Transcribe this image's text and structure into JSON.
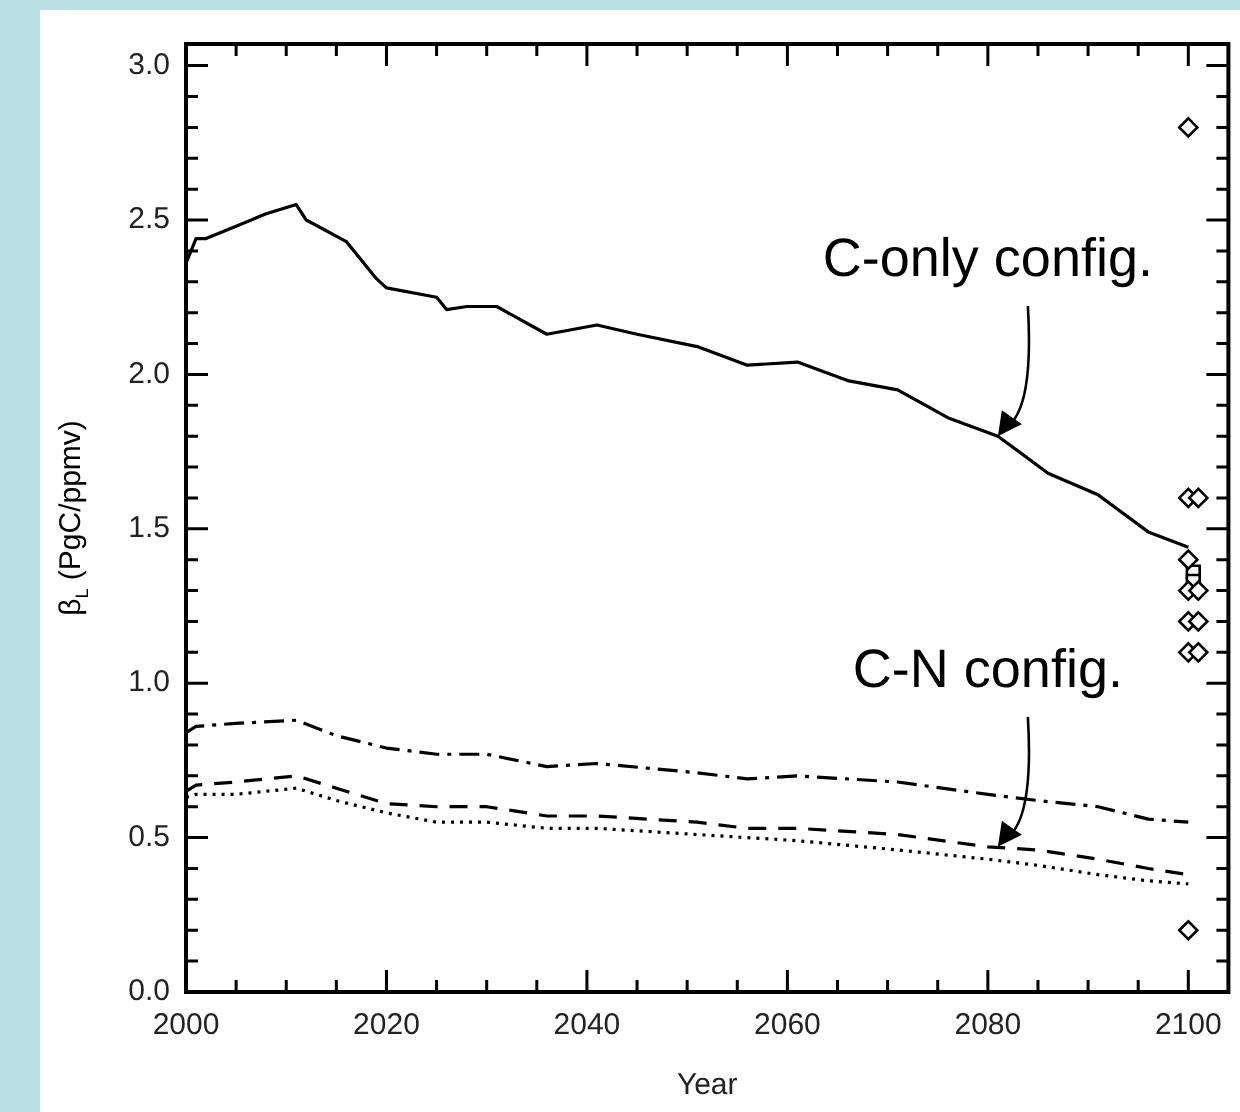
{
  "chart_data": {
    "type": "line",
    "xlabel": "Year",
    "ylabel": "β$_{L}$ (PgC/ppmv)",
    "xlim": [
      2000,
      2104
    ],
    "ylim": [
      0,
      3.07
    ],
    "xticks": [
      2000,
      {
        "value": 2005,
        "label": null
      },
      {
        "value": 2010,
        "label": null
      },
      {
        "value": 2015,
        "label": null
      },
      2020,
      {
        "value": 2025,
        "label": null
      },
      {
        "value": 2030,
        "label": null
      },
      {
        "value": 2035,
        "label": null
      },
      2040,
      {
        "value": 2045,
        "label": null
      },
      {
        "value": 2050,
        "label": null
      },
      {
        "value": 2055,
        "label": null
      },
      2060,
      {
        "value": 2065,
        "label": null
      },
      {
        "value": 2070,
        "label": null
      },
      {
        "value": 2075,
        "label": null
      },
      2080,
      {
        "value": 2085,
        "label": null
      },
      {
        "value": 2090,
        "label": null
      },
      {
        "value": 2095,
        "label": null
      },
      2100
    ],
    "yticks": [
      {
        "value": 0,
        "label": "0.0"
      },
      {
        "value": 0.1,
        "label": null
      },
      {
        "value": 0.2,
        "label": null
      },
      {
        "value": 0.3,
        "label": null
      },
      {
        "value": 0.4,
        "label": null
      },
      {
        "value": 0.5,
        "label": "0.5"
      },
      {
        "value": 0.6,
        "label": null
      },
      {
        "value": 0.7,
        "label": null
      },
      {
        "value": 0.8,
        "label": null
      },
      {
        "value": 0.9,
        "label": null
      },
      {
        "value": 1,
        "label": "1.0"
      },
      {
        "value": 1.1,
        "label": null
      },
      {
        "value": 1.2,
        "label": null
      },
      {
        "value": 1.3,
        "label": null
      },
      {
        "value": 1.4,
        "label": null
      },
      {
        "value": 1.5,
        "label": "1.5"
      },
      {
        "value": 1.6,
        "label": null
      },
      {
        "value": 1.7,
        "label": null
      },
      {
        "value": 1.8,
        "label": null
      },
      {
        "value": 1.9,
        "label": null
      },
      {
        "value": 2,
        "label": "2.0"
      },
      {
        "value": 2.1,
        "label": null
      },
      {
        "value": 2.2,
        "label": null
      },
      {
        "value": 2.3,
        "label": null
      },
      {
        "value": 2.4,
        "label": null
      },
      {
        "value": 2.5,
        "label": "2.5"
      },
      {
        "value": 2.6,
        "label": null
      },
      {
        "value": 2.7,
        "label": null
      },
      {
        "value": 2.8,
        "label": null
      },
      {
        "value": 2.9,
        "label": null
      },
      {
        "value": 3,
        "label": "3.0"
      }
    ],
    "grid": false,
    "legend": false,
    "marker": "none",
    "series": [
      {
        "color": "#000000",
        "line_style": "solid",
        "x": [
          2000,
          2001,
          2002,
          2005,
          2008,
          2011,
          2012,
          2016,
          2019,
          2020,
          2025,
          2026,
          2028,
          2031,
          2036,
          2041,
          2045,
          2051,
          2056,
          2061,
          2066,
          2071,
          2076,
          2081,
          2086,
          2091,
          2096,
          2100
        ],
        "values": [
          2.36,
          2.44,
          2.44,
          2.48,
          2.52,
          2.55,
          2.5,
          2.43,
          2.31,
          2.28,
          2.25,
          2.21,
          2.22,
          2.22,
          2.13,
          2.16,
          2.13,
          2.09,
          2.03,
          2.04,
          1.98,
          1.95,
          1.86,
          1.8,
          1.68,
          1.61,
          1.49,
          1.44
        ]
      },
      {
        "color": "#000000",
        "line_style": "dashdot",
        "x": [
          2000,
          2001,
          2005,
          2011,
          2015,
          2020,
          2025,
          2030,
          2036,
          2041,
          2051,
          2056,
          2061,
          2071,
          2080,
          2085,
          2091,
          2096,
          2100
        ],
        "values": [
          0.84,
          0.86,
          0.87,
          0.88,
          0.83,
          0.79,
          0.77,
          0.77,
          0.73,
          0.74,
          0.71,
          0.69,
          0.7,
          0.68,
          0.64,
          0.62,
          0.6,
          0.56,
          0.55
        ]
      },
      {
        "color": "#000000",
        "line_style": "dashed",
        "x": [
          2000,
          2001,
          2005,
          2011,
          2015,
          2020,
          2025,
          2030,
          2036,
          2041,
          2051,
          2056,
          2061,
          2071,
          2080,
          2085,
          2091,
          2096,
          2100
        ],
        "values": [
          0.65,
          0.67,
          0.68,
          0.7,
          0.66,
          0.61,
          0.6,
          0.6,
          0.57,
          0.57,
          0.55,
          0.53,
          0.53,
          0.51,
          0.47,
          0.46,
          0.43,
          0.4,
          0.38
        ]
      },
      {
        "color": "#000000",
        "line_style": "dotted",
        "x": [
          2000,
          2001,
          2005,
          2011,
          2015,
          2020,
          2025,
          2030,
          2036,
          2041,
          2051,
          2056,
          2061,
          2071,
          2080,
          2085,
          2091,
          2096,
          2100
        ],
        "values": [
          0.63,
          0.64,
          0.64,
          0.66,
          0.62,
          0.58,
          0.55,
          0.55,
          0.53,
          0.53,
          0.51,
          0.5,
          0.49,
          0.46,
          0.43,
          0.41,
          0.38,
          0.36,
          0.35
        ]
      },
      {
        "type": "scatter",
        "marker": "diamond",
        "color": "#000000",
        "x": [
          2100,
          2100,
          2101,
          2100,
          2100,
          2101,
          2100,
          2101,
          2100,
          2101,
          2100
        ],
        "values": [
          2.8,
          1.6,
          1.6,
          1.4,
          1.3,
          1.3,
          1.2,
          1.2,
          1.1,
          1.1,
          0.2
        ]
      },
      {
        "type": "scatter",
        "marker": "square",
        "color": "#000000",
        "x": [
          2100.5,
          2100.5
        ],
        "values": [
          1.36,
          1.33
        ]
      }
    ],
    "annotations": [
      {
        "text": "C-only config.",
        "x": 2081,
        "y": 1.8
      },
      {
        "text": "C-N config.",
        "x": 2081,
        "y": 0.47
      }
    ]
  }
}
